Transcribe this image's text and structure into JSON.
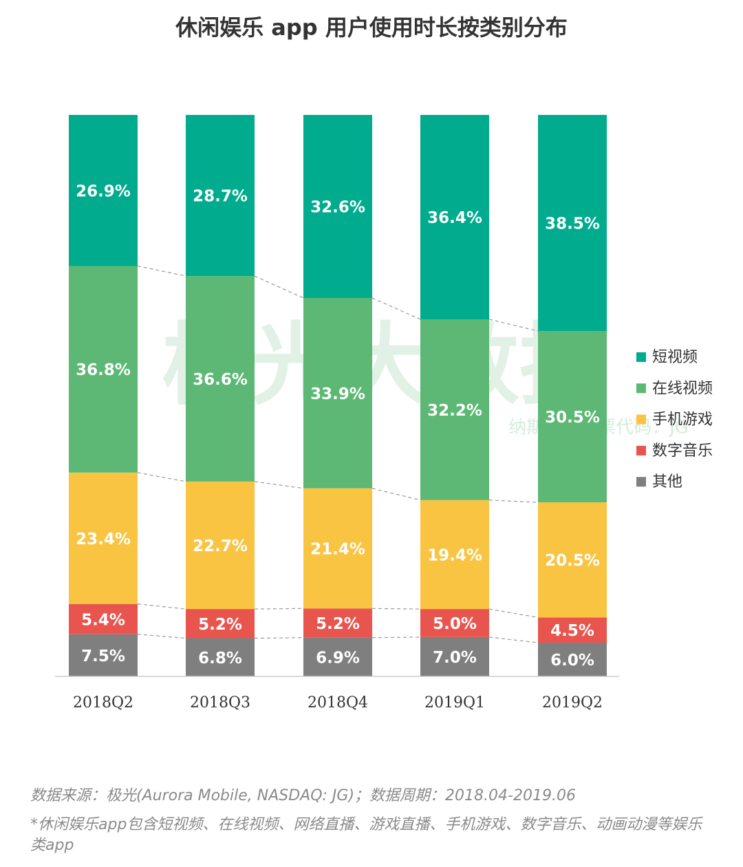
{
  "chart_data": {
    "type": "stacked-bar",
    "title": "休闲娱乐 app 用户使用时长按类别分布",
    "categories": [
      "2018Q2",
      "2018Q3",
      "2018Q4",
      "2019Q1",
      "2019Q2"
    ],
    "series": [
      {
        "name": "短视频",
        "color": "#00ab8e",
        "values": [
          26.9,
          28.7,
          32.6,
          36.4,
          38.5
        ],
        "value_labels": [
          "26.9%",
          "28.7%",
          "32.6%",
          "36.4%",
          "38.5%"
        ]
      },
      {
        "name": "在线视频",
        "color": "#5cb874",
        "values": [
          36.8,
          36.6,
          33.9,
          32.2,
          30.5
        ],
        "value_labels": [
          "36.8%",
          "36.6%",
          "33.9%",
          "32.2%",
          "30.5%"
        ]
      },
      {
        "name": "手机游戏",
        "color": "#fac443",
        "values": [
          23.4,
          22.7,
          21.4,
          19.4,
          20.5
        ],
        "value_labels": [
          "23.4%",
          "22.7%",
          "21.4%",
          "19.4%",
          "20.5%"
        ]
      },
      {
        "name": "数字音乐",
        "color": "#e8554e",
        "values": [
          5.4,
          5.2,
          5.2,
          5.0,
          4.5
        ],
        "value_labels": [
          "5.4%",
          "5.2%",
          "5.2%",
          "5.0%",
          "4.5%"
        ]
      },
      {
        "name": "其他",
        "color": "#7f7f7f",
        "values": [
          7.5,
          6.8,
          6.9,
          7.0,
          6.0
        ],
        "value_labels": [
          "7.5%",
          "6.8%",
          "6.9%",
          "7.0%",
          "6.0%"
        ]
      }
    ],
    "legend": "right",
    "watermark": [
      "极光大数据",
      "纳斯达克股票代码：JG"
    ],
    "notes": [
      "数据来源：极光(Aurora Mobile, NASDAQ: JG)；数据周期：2018.04-2019.06",
      "*休闲娱乐app包含短视频、在线视频、网络直播、游戏直播、手机游戏、数字音乐、动画动漫等娱乐类app"
    ]
  }
}
